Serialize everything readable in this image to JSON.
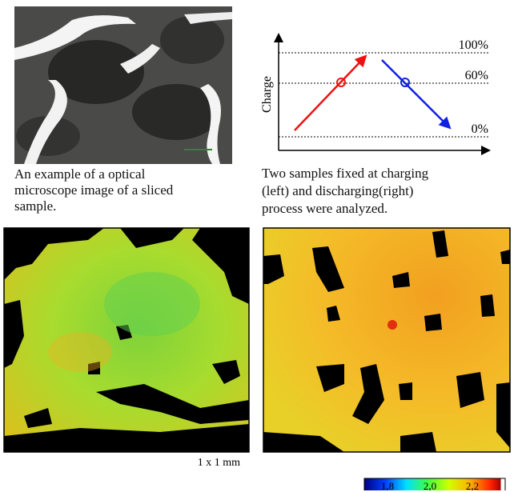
{
  "microscope_caption": {
    "lines": [
      "An example of a optical",
      "microscope image of a sliced",
      "sample."
    ]
  },
  "charge_diagram": {
    "axis_label": "Charge",
    "levels": [
      "100%",
      "60%",
      "0%"
    ]
  },
  "process_caption": {
    "lines": [
      "Two samples fixed at charging",
      "(left) and discharging(right)",
      "process were analyzed."
    ]
  },
  "scale_label": "1 x 1 mm",
  "colorbar": {
    "ticks": [
      "1.8",
      "2.0",
      "2.2"
    ]
  }
}
